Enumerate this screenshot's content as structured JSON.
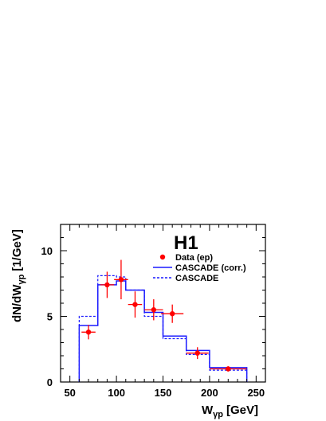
{
  "chart_data": {
    "type": "histogram",
    "title": "",
    "logo": "H1",
    "xlabel_main": "W",
    "xlabel_sub": "γp",
    "xlabel_unit": "[GeV]",
    "ylabel_main": "dN/dW",
    "ylabel_sub": "γp",
    "ylabel_unit": "[1/GeV]",
    "xlim": [
      40,
      260
    ],
    "ylim": [
      0,
      12
    ],
    "x_ticks": [
      50,
      100,
      150,
      200,
      250
    ],
    "x_tick_labels": [
      "50",
      "100",
      "150",
      "200",
      "250"
    ],
    "y_ticks": [
      0,
      5,
      10
    ],
    "y_tick_labels": [
      "0",
      "5",
      "10"
    ],
    "grid": false,
    "legend_position": "top-right",
    "colors": {
      "data": "#ff0000",
      "cascade_corr": "#1a1aff",
      "cascade": "#1a1aff"
    },
    "legend": [
      {
        "key": "data",
        "label": "Data (ep)"
      },
      {
        "key": "cascade_corr",
        "label": "CASCADE (corr.)"
      },
      {
        "key": "cascade",
        "label": "CASCADE"
      }
    ],
    "data_points": [
      {
        "x": 70,
        "y": 3.8,
        "xerr": 7.5,
        "yerr": 0.55
      },
      {
        "x": 90,
        "y": 7.4,
        "xerr": 7.5,
        "yerr": 1.0
      },
      {
        "x": 105,
        "y": 7.8,
        "xerr": 7.5,
        "yerr": 1.5
      },
      {
        "x": 120,
        "y": 5.9,
        "xerr": 7.5,
        "yerr": 1.0
      },
      {
        "x": 140,
        "y": 5.5,
        "xerr": 10,
        "yerr": 0.8
      },
      {
        "x": 160,
        "y": 5.2,
        "xerr": 12,
        "yerr": 0.7
      },
      {
        "x": 187,
        "y": 2.2,
        "xerr": 12,
        "yerr": 0.45
      },
      {
        "x": 220,
        "y": 1.0,
        "xerr": 20,
        "yerr": 0.2
      }
    ],
    "bin_edges": [
      60,
      80,
      100,
      110,
      130,
      150,
      175,
      200,
      240
    ],
    "series": [
      {
        "key": "cascade_corr",
        "values": [
          4.3,
          7.4,
          7.7,
          7.0,
          5.3,
          3.5,
          2.4,
          1.1
        ]
      },
      {
        "key": "cascade",
        "values": [
          5.0,
          8.1,
          8.0,
          7.0,
          5.0,
          3.3,
          2.1,
          0.9
        ]
      }
    ]
  }
}
